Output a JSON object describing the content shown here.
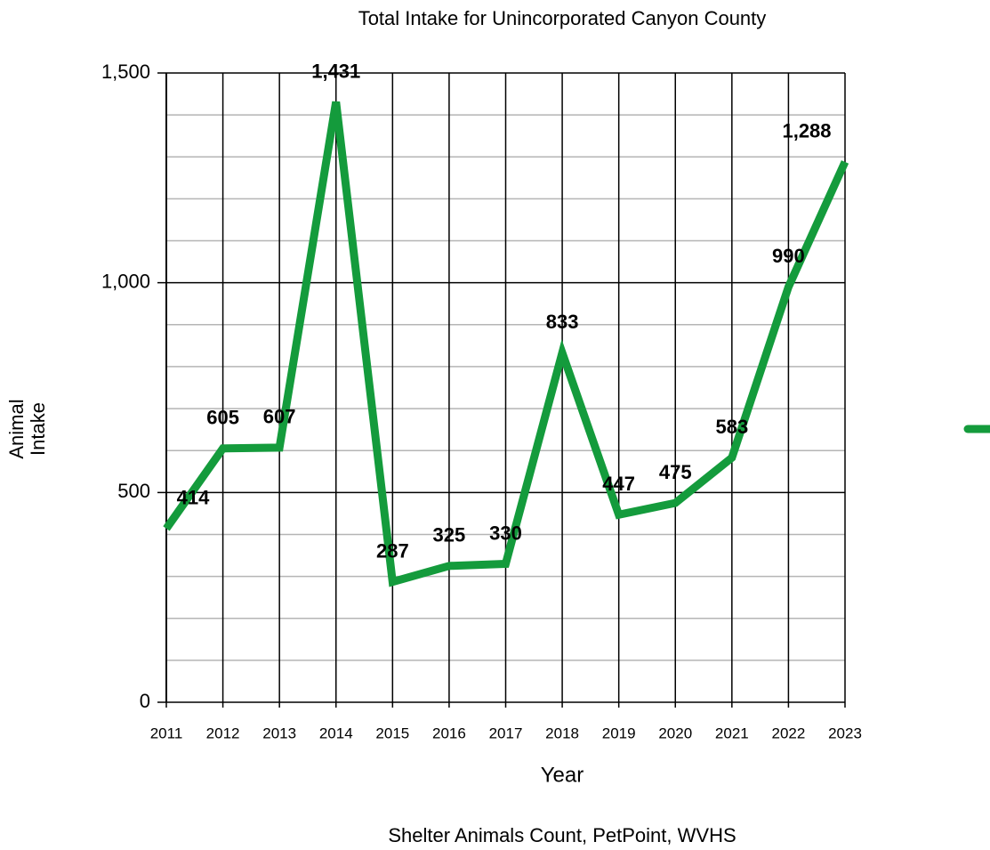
{
  "chart_data": {
    "type": "line",
    "title": "Total Intake for Unincorporated Canyon County",
    "x_label": "Year",
    "y_label": "Animal Intake",
    "source": "Shelter Animals Count, PetPoint, WVHS",
    "categories": [
      "2011",
      "2012",
      "2013",
      "2014",
      "2015",
      "2016",
      "2017",
      "2018",
      "2019",
      "2020",
      "2021",
      "2022",
      "2023"
    ],
    "series": [
      {
        "color": "#149b3c",
        "values": [
          414,
          605,
          607,
          1431,
          287,
          325,
          330,
          833,
          447,
          475,
          583,
          990,
          1288
        ],
        "value_labels": [
          "414",
          "605",
          "607",
          "1,431",
          "287",
          "325",
          "330",
          "833",
          "447",
          "475",
          "583",
          "990",
          "1,288"
        ]
      }
    ],
    "ylim": [
      0,
      1500
    ],
    "yticks": [
      0,
      500,
      {
        "value": 1000,
        "label": "1,000"
      },
      {
        "value": 1500,
        "label": "1,500"
      }
    ],
    "minor_yticks": [
      100,
      200,
      300,
      400,
      600,
      700,
      800,
      900,
      1100,
      1200,
      1300,
      1400
    ],
    "grid": true
  }
}
